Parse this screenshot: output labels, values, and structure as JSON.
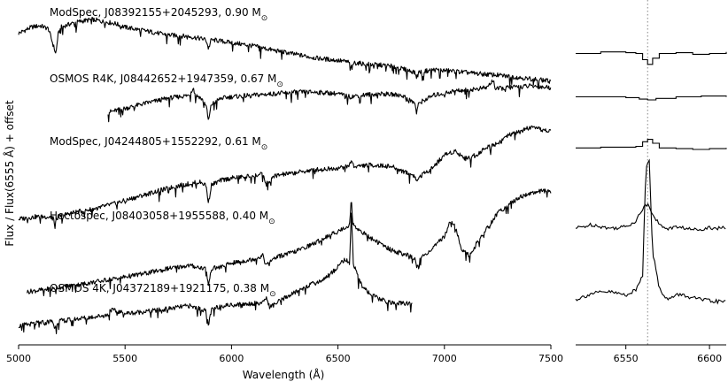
{
  "chart_data": [
    {
      "type": "line",
      "panel": "main",
      "xlabel": "Wavelength (Å)",
      "ylabel": "Flux / Flux(6555 Å) + offset",
      "xlim": [
        5000,
        7500
      ],
      "xticks": [
        5000,
        5500,
        6000,
        6500,
        7000,
        7500
      ],
      "grid": false,
      "legend": "none",
      "series": [
        {
          "label": "ModSpec, J08392155+2045293, 0.90 M",
          "x": [
            5000,
            5060,
            5100,
            5140,
            5170,
            5175,
            5185,
            5200,
            5250,
            5300,
            5350,
            5400,
            5450,
            5500,
            5600,
            5700,
            5800,
            5880,
            5892,
            5905,
            5950,
            6000,
            6100,
            6200,
            6300,
            6400,
            6500,
            6550,
            6563,
            6575,
            6650,
            6750,
            6860,
            6870,
            6880,
            6950,
            7050,
            7150,
            7250,
            7350,
            7450,
            7500
          ],
          "y": [
            3.82,
            3.9,
            3.92,
            3.88,
            3.6,
            3.55,
            3.8,
            3.9,
            3.95,
            3.98,
            4.0,
            3.97,
            3.95,
            3.9,
            3.85,
            3.8,
            3.78,
            3.74,
            3.62,
            3.74,
            3.72,
            3.7,
            3.66,
            3.6,
            3.55,
            3.5,
            3.47,
            3.45,
            3.38,
            3.44,
            3.42,
            3.4,
            3.32,
            3.25,
            3.32,
            3.35,
            3.33,
            3.3,
            3.28,
            3.25,
            3.22,
            3.2
          ]
        },
        {
          "label": "OSMOS R4K, J08442652+1947359, 0.67 M",
          "x": [
            5420,
            5500,
            5600,
            5700,
            5800,
            5820,
            5830,
            5850,
            5880,
            5892,
            5905,
            5950,
            6000,
            6100,
            6200,
            6300,
            6400,
            6500,
            6555,
            6600,
            6700,
            6800,
            6860,
            6870,
            6880,
            6950,
            7050,
            7150,
            7200,
            7230,
            7240,
            7300,
            7400,
            7500
          ],
          "y": [
            2.8,
            2.85,
            2.92,
            2.98,
            3.02,
            3.12,
            3.02,
            3.0,
            2.9,
            2.68,
            2.9,
            2.98,
            3.0,
            3.02,
            3.04,
            3.06,
            3.06,
            3.04,
            3.0,
            3.02,
            3.04,
            3.02,
            2.92,
            2.8,
            2.92,
            3.02,
            3.08,
            3.1,
            3.12,
            3.22,
            3.1,
            3.12,
            3.14,
            3.12
          ]
        },
        {
          "label": "ModSpec, J04244805+1552292, 0.61 M",
          "x": [
            5000,
            5080,
            5160,
            5170,
            5185,
            5250,
            5350,
            5450,
            5550,
            5650,
            5750,
            5850,
            5880,
            5892,
            5905,
            5950,
            6000,
            6100,
            6150,
            6160,
            6200,
            6300,
            6400,
            6500,
            6550,
            6563,
            6575,
            6650,
            6750,
            6860,
            6870,
            6880,
            6950,
            7000,
            7050,
            7100,
            7150,
            7200,
            7250,
            7300,
            7350,
            7400,
            7450,
            7500
          ],
          "y": [
            1.42,
            1.45,
            1.45,
            1.36,
            1.45,
            1.5,
            1.55,
            1.62,
            1.7,
            1.78,
            1.85,
            1.9,
            1.86,
            1.62,
            1.86,
            1.92,
            1.95,
            1.98,
            2.0,
            1.86,
            1.98,
            2.02,
            2.06,
            2.08,
            2.1,
            2.18,
            2.1,
            2.12,
            2.1,
            1.98,
            1.9,
            1.96,
            2.1,
            2.25,
            2.3,
            2.2,
            2.25,
            2.35,
            2.4,
            2.5,
            2.55,
            2.6,
            2.58,
            2.55
          ]
        },
        {
          "label": "Hectospec, J08403058+1955588, 0.40 M",
          "x": [
            5040,
            5150,
            5300,
            5450,
            5600,
            5700,
            5800,
            5880,
            5892,
            5905,
            5950,
            6000,
            6100,
            6150,
            6160,
            6200,
            6300,
            6350,
            6400,
            6450,
            6500,
            6540,
            6555,
            6563,
            6570,
            6600,
            6650,
            6750,
            6860,
            6870,
            6880,
            6950,
            7000,
            7030,
            7050,
            7080,
            7120,
            7150,
            7200,
            7250,
            7300,
            7350,
            7400,
            7450,
            7500
          ],
          "y": [
            0.48,
            0.52,
            0.58,
            0.65,
            0.72,
            0.78,
            0.82,
            0.78,
            0.56,
            0.78,
            0.8,
            0.85,
            0.9,
            0.95,
            0.82,
            0.92,
            1.0,
            1.06,
            1.12,
            1.2,
            1.26,
            1.32,
            1.35,
            1.7,
            1.35,
            1.28,
            1.18,
            1.02,
            0.92,
            0.78,
            0.9,
            1.05,
            1.2,
            1.4,
            1.35,
            1.02,
            0.95,
            1.1,
            1.3,
            1.5,
            1.6,
            1.7,
            1.75,
            1.78,
            1.78
          ]
        },
        {
          "label": "OSMOS 4K, J04372189+1921175, 0.38 M",
          "x": [
            5000,
            5100,
            5160,
            5170,
            5185,
            5300,
            5420,
            5430,
            5500,
            5650,
            5800,
            5880,
            5892,
            5905,
            5950,
            6050,
            6150,
            6160,
            6180,
            6250,
            6350,
            6420,
            6480,
            6530,
            6555,
            6563,
            6572,
            6600,
            6650,
            6700,
            6750,
            6850
          ],
          "y": [
            0.04,
            0.08,
            0.1,
            0.0,
            0.1,
            0.14,
            0.18,
            0.25,
            0.2,
            0.24,
            0.3,
            0.24,
            0.05,
            0.24,
            0.3,
            0.32,
            0.34,
            0.42,
            0.28,
            0.4,
            0.55,
            0.62,
            0.75,
            0.9,
            0.85,
            1.52,
            0.85,
            0.62,
            0.45,
            0.38,
            0.34,
            0.32
          ]
        }
      ]
    },
    {
      "type": "line",
      "panel": "zoom",
      "xlim": [
        6520,
        6610
      ],
      "xticks": [
        6550,
        6600
      ],
      "reference_line_x": 6563,
      "grid": false,
      "legend": "none",
      "series": [
        {
          "x": [
            6520,
            6535,
            6550,
            6556,
            6560,
            6563,
            6566,
            6570,
            6580,
            6590,
            6600,
            6610
          ],
          "y": [
            3.56,
            3.58,
            3.57,
            3.56,
            3.48,
            3.42,
            3.5,
            3.56,
            3.57,
            3.55,
            3.56,
            3.58
          ]
        },
        {
          "x": [
            6520,
            6535,
            6550,
            6558,
            6563,
            6568,
            6580,
            6595,
            6610
          ],
          "y": [
            3.0,
            3.0,
            2.99,
            2.97,
            2.96,
            2.98,
            3.0,
            3.01,
            3.0
          ]
        },
        {
          "x": [
            6520,
            6535,
            6550,
            6556,
            6560,
            6563,
            6566,
            6570,
            6580,
            6590,
            6600,
            6610
          ],
          "y": [
            2.34,
            2.35,
            2.35,
            2.36,
            2.42,
            2.45,
            2.4,
            2.34,
            2.33,
            2.32,
            2.33,
            2.34
          ]
        },
        {
          "x": [
            6520,
            6530,
            6540,
            6550,
            6556,
            6560,
            6563,
            6566,
            6570,
            6575,
            6582,
            6590,
            6600,
            6610
          ],
          "y": [
            1.3,
            1.35,
            1.3,
            1.32,
            1.4,
            1.55,
            1.62,
            1.5,
            1.34,
            1.3,
            1.32,
            1.28,
            1.31,
            1.3
          ]
        },
        {
          "x": [
            6520,
            6530,
            6540,
            6550,
            6556,
            6560,
            6562,
            6564,
            6566,
            6570,
            6575,
            6582,
            6590,
            6600,
            6610
          ],
          "y": [
            0.38,
            0.46,
            0.48,
            0.44,
            0.5,
            0.7,
            2.1,
            2.2,
            1.0,
            0.52,
            0.38,
            0.45,
            0.4,
            0.36,
            0.35
          ]
        }
      ]
    }
  ],
  "labels": {
    "msun_symbol": "⊙"
  }
}
